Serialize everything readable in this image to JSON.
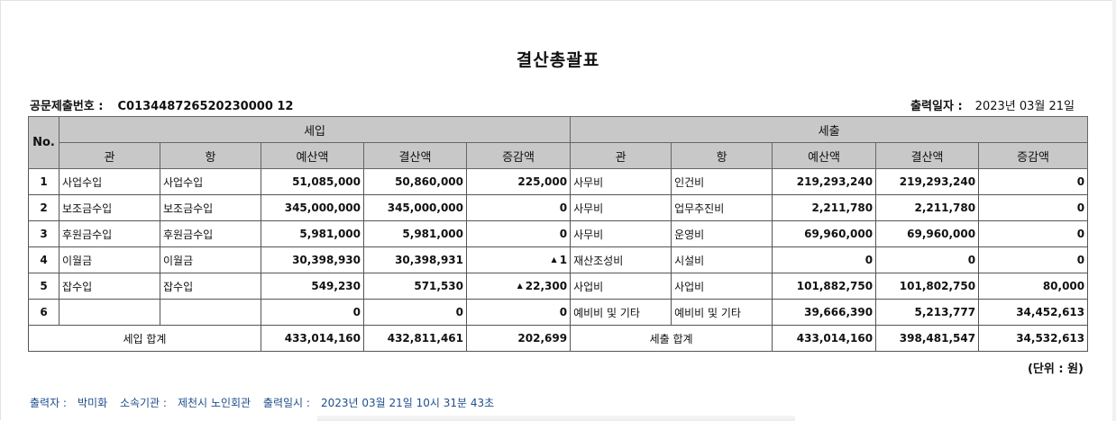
{
  "title": "결산총괄표",
  "doc_no_label": "공문제출번호 :",
  "doc_no": "C013448726520230000 12",
  "print_date_label": "출력일자 :",
  "print_date": "2023년 03월 21일",
  "headers": {
    "no": "No.",
    "income": "세입",
    "expense": "세출",
    "gwan": "관",
    "hang": "항",
    "budget": "예산액",
    "settlement": "결산액",
    "diff": "증감액"
  },
  "rows": [
    {
      "no": "1",
      "in_gwan": "사업수입",
      "in_hang": "사업수입",
      "in_budget": "51,085,000",
      "in_settle": "50,860,000",
      "in_diff": "225,000",
      "in_diff_up": false,
      "ex_gwan": "사무비",
      "ex_hang": "인건비",
      "ex_budget": "219,293,240",
      "ex_settle": "219,293,240",
      "ex_diff": "0"
    },
    {
      "no": "2",
      "in_gwan": "보조금수입",
      "in_hang": "보조금수입",
      "in_budget": "345,000,000",
      "in_settle": "345,000,000",
      "in_diff": "0",
      "in_diff_up": false,
      "ex_gwan": "사무비",
      "ex_hang": "업무추진비",
      "ex_budget": "2,211,780",
      "ex_settle": "2,211,780",
      "ex_diff": "0"
    },
    {
      "no": "3",
      "in_gwan": "후원금수입",
      "in_hang": "후원금수입",
      "in_budget": "5,981,000",
      "in_settle": "5,981,000",
      "in_diff": "0",
      "in_diff_up": false,
      "ex_gwan": "사무비",
      "ex_hang": "운영비",
      "ex_budget": "69,960,000",
      "ex_settle": "69,960,000",
      "ex_diff": "0"
    },
    {
      "no": "4",
      "in_gwan": "이월금",
      "in_hang": "이월금",
      "in_budget": "30,398,930",
      "in_settle": "30,398,931",
      "in_diff": "1",
      "in_diff_up": true,
      "ex_gwan": "재산조성비",
      "ex_hang": "시설비",
      "ex_budget": "0",
      "ex_settle": "0",
      "ex_diff": "0"
    },
    {
      "no": "5",
      "in_gwan": "잡수입",
      "in_hang": "잡수입",
      "in_budget": "549,230",
      "in_settle": "571,530",
      "in_diff": "22,300",
      "in_diff_up": true,
      "ex_gwan": "사업비",
      "ex_hang": " 사업비",
      "ex_budget": "101,882,750",
      "ex_settle": "101,802,750",
      "ex_diff": "80,000"
    },
    {
      "no": "6",
      "in_gwan": "",
      "in_hang": "",
      "in_budget": "0",
      "in_settle": "0",
      "in_diff": "0",
      "in_diff_up": false,
      "ex_gwan": "예비비 및 기타",
      "ex_hang": "예비비 및 기타",
      "ex_budget": "39,666,390",
      "ex_settle": "5,213,777",
      "ex_diff": "34,452,613"
    }
  ],
  "totals": {
    "in_label": "세입 합계",
    "in_budget": "433,014,160",
    "in_settle": "432,811,461",
    "in_diff": "202,699",
    "ex_label": "세출 합계",
    "ex_budget": "433,014,160",
    "ex_settle": "398,481,547",
    "ex_diff": "34,532,613"
  },
  "unit": "(단위 : 원)",
  "footer": {
    "writer_label": "출력자 :",
    "writer": "박미화",
    "org_label": "소속기관 :",
    "org": "제천시 노인회관",
    "datetime_label": "출력일시 :",
    "datetime": "2023년 03월 21일 10시 31분 43초"
  },
  "icons": {
    "up_arrow": "triangle-up-icon"
  }
}
